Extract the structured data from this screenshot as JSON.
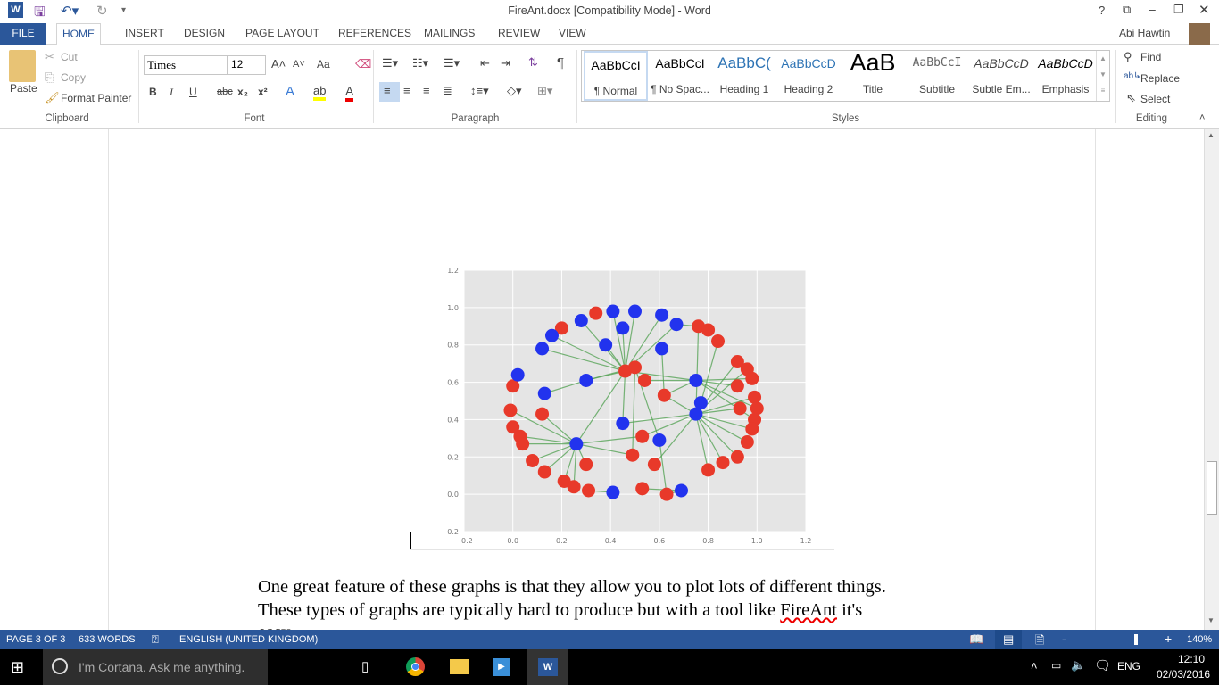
{
  "window": {
    "title": "FireAnt.docx [Compatibility Mode] - Word",
    "user": "Abi Hawtin",
    "controls": [
      "?",
      "restore-ribbon",
      "minimize",
      "maximize",
      "close"
    ]
  },
  "tabs": [
    {
      "label": "FILE"
    },
    {
      "label": "HOME",
      "active": true
    },
    {
      "label": "INSERT"
    },
    {
      "label": "DESIGN"
    },
    {
      "label": "PAGE LAYOUT"
    },
    {
      "label": "REFERENCES"
    },
    {
      "label": "MAILINGS"
    },
    {
      "label": "REVIEW"
    },
    {
      "label": "VIEW"
    }
  ],
  "ribbon": {
    "clipboard": {
      "label": "Clipboard",
      "paste": "Paste",
      "cut": "Cut",
      "copy": "Copy",
      "format_painter": "Format Painter"
    },
    "font": {
      "label": "Font",
      "font_name": "Times",
      "font_size": "12",
      "change_case": "Aa",
      "bold": "B",
      "italic": "I",
      "underline": "U",
      "strike": "abc",
      "sub": "x₂",
      "sup": "x²"
    },
    "paragraph": {
      "label": "Paragraph"
    },
    "styles": {
      "label": "Styles",
      "items": [
        {
          "preview": "AaBbCcI",
          "name": "¶ Normal",
          "selected": true
        },
        {
          "preview": "AaBbCcI",
          "name": "¶ No Spac..."
        },
        {
          "preview": "AaBbC(",
          "name": "Heading 1"
        },
        {
          "preview": "AaBbCcD",
          "name": "Heading 2"
        },
        {
          "preview": "AaB",
          "name": "Title"
        },
        {
          "preview": "AaBbCcI",
          "name": "Subtitle"
        },
        {
          "preview": "AaBbCcD",
          "name": "Subtle Em..."
        },
        {
          "preview": "AaBbCcD",
          "name": "Emphasis"
        }
      ]
    },
    "editing": {
      "label": "Editing",
      "find": "Find",
      "replace": "Replace",
      "select": "Select"
    }
  },
  "document": {
    "paragraphs": [
      "One great feature of these graphs is that they allow you to plot lots of different things.",
      "These types of graphs are typically hard to produce but with a tool like FireAnt it's",
      "easy."
    ],
    "misspelled": "FireAnt"
  },
  "chart_data": {
    "type": "scatter",
    "subtype": "network-graph",
    "xlim": [
      -0.2,
      1.2
    ],
    "ylim": [
      -0.2,
      1.2
    ],
    "xticks": [
      "−0.2",
      "0.0",
      "0.2",
      "0.4",
      "0.6",
      "0.8",
      "1.0",
      "1.2"
    ],
    "yticks": [
      "1.2",
      "1.0",
      "0.8",
      "0.6",
      "0.4",
      "0.2",
      "0.0",
      "−0.2"
    ],
    "grid": true,
    "colors": {
      "blue": "#2233ee",
      "red": "#e8392a",
      "edge": "#4e9f4e",
      "background": "#e5e5e5"
    },
    "nodes_blue": [
      [
        0.02,
        0.64
      ],
      [
        0.13,
        0.54
      ],
      [
        0.12,
        0.78
      ],
      [
        0.16,
        0.85
      ],
      [
        0.28,
        0.93
      ],
      [
        0.41,
        0.98
      ],
      [
        0.5,
        0.98
      ],
      [
        0.45,
        0.89
      ],
      [
        0.38,
        0.8
      ],
      [
        0.3,
        0.61
      ],
      [
        0.26,
        0.27
      ],
      [
        0.45,
        0.38
      ],
      [
        0.61,
        0.96
      ],
      [
        0.67,
        0.91
      ],
      [
        0.61,
        0.78
      ],
      [
        0.75,
        0.61
      ],
      [
        0.77,
        0.49
      ],
      [
        0.75,
        0.43
      ],
      [
        0.6,
        0.29
      ],
      [
        0.41,
        0.01
      ],
      [
        0.69,
        0.02
      ]
    ],
    "nodes_red": [
      [
        0.0,
        0.58
      ],
      [
        -0.01,
        0.45
      ],
      [
        0.0,
        0.36
      ],
      [
        0.03,
        0.31
      ],
      [
        0.04,
        0.27
      ],
      [
        0.12,
        0.43
      ],
      [
        0.08,
        0.18
      ],
      [
        0.13,
        0.12
      ],
      [
        0.21,
        0.07
      ],
      [
        0.25,
        0.04
      ],
      [
        0.31,
        0.02
      ],
      [
        0.2,
        0.89
      ],
      [
        0.34,
        0.97
      ],
      [
        0.46,
        0.66
      ],
      [
        0.5,
        0.68
      ],
      [
        0.54,
        0.61
      ],
      [
        0.62,
        0.53
      ],
      [
        0.53,
        0.31
      ],
      [
        0.3,
        0.16
      ],
      [
        0.49,
        0.21
      ],
      [
        0.58,
        0.16
      ],
      [
        0.53,
        0.03
      ],
      [
        0.63,
        0.0
      ],
      [
        0.76,
        0.9
      ],
      [
        0.8,
        0.88
      ],
      [
        0.84,
        0.82
      ],
      [
        0.92,
        0.71
      ],
      [
        0.96,
        0.67
      ],
      [
        0.98,
        0.62
      ],
      [
        0.92,
        0.58
      ],
      [
        0.99,
        0.52
      ],
      [
        1.0,
        0.46
      ],
      [
        0.93,
        0.46
      ],
      [
        0.99,
        0.4
      ],
      [
        0.98,
        0.35
      ],
      [
        0.96,
        0.28
      ],
      [
        0.92,
        0.2
      ],
      [
        0.86,
        0.17
      ],
      [
        0.8,
        0.13
      ]
    ],
    "edges": [
      [
        "b10",
        "r1"
      ],
      [
        "b10",
        "r3"
      ],
      [
        "b10",
        "r4"
      ],
      [
        "b10",
        "r5"
      ],
      [
        "b10",
        "r6"
      ],
      [
        "b10",
        "r7"
      ],
      [
        "b10",
        "r8"
      ],
      [
        "b10",
        "r9"
      ],
      [
        "b10",
        "r18"
      ],
      [
        "b10",
        "r19"
      ],
      [
        "b10",
        "r17"
      ],
      [
        "b10",
        "r13"
      ],
      [
        "r13",
        "b9"
      ],
      [
        "r13",
        "b3"
      ],
      [
        "r13",
        "b2"
      ],
      [
        "r13",
        "b8"
      ],
      [
        "r13",
        "b7"
      ],
      [
        "r13",
        "b5"
      ],
      [
        "r13",
        "b6"
      ],
      [
        "r13",
        "b4"
      ],
      [
        "r13",
        "b12"
      ],
      [
        "r13",
        "b13"
      ],
      [
        "r13",
        "b11"
      ],
      [
        "r13",
        "r14"
      ],
      [
        "r13",
        "b15"
      ],
      [
        "b9",
        "b1"
      ],
      [
        "b9",
        "r14"
      ],
      [
        "b15",
        "r15"
      ],
      [
        "b15",
        "r29"
      ],
      [
        "b15",
        "r31"
      ],
      [
        "b15",
        "r33"
      ],
      [
        "b15",
        "r16"
      ],
      [
        "b15",
        "r28"
      ],
      [
        "b17",
        "r16"
      ],
      [
        "b17",
        "r26"
      ],
      [
        "b17",
        "r27"
      ],
      [
        "b17",
        "r30"
      ],
      [
        "b17",
        "r32"
      ],
      [
        "b17",
        "r34"
      ],
      [
        "b17",
        "r35"
      ],
      [
        "b17",
        "r36"
      ],
      [
        "b17",
        "r37"
      ],
      [
        "b17",
        "r38"
      ],
      [
        "b17",
        "b11"
      ],
      [
        "b17",
        "r17"
      ],
      [
        "b17",
        "r20"
      ],
      [
        "b14",
        "r16"
      ],
      [
        "b13",
        "r23"
      ],
      [
        "r23",
        "r24"
      ],
      [
        "r23",
        "b17"
      ],
      [
        "b18",
        "r14"
      ],
      [
        "b18",
        "r22"
      ],
      [
        "r22",
        "b20"
      ],
      [
        "r21",
        "b20"
      ],
      [
        "b19",
        "r10"
      ],
      [
        "r19",
        "r14"
      ],
      [
        "b16",
        "r25"
      ]
    ]
  },
  "status": {
    "page": "PAGE 3 OF 3",
    "words": "633 WORDS",
    "language": "ENGLISH (UNITED KINGDOM)",
    "zoom": "140%",
    "zoom_level": 1.4
  },
  "taskbar": {
    "search_placeholder": "I'm Cortana. Ask me anything.",
    "language": "ENG",
    "time": "12:10",
    "date": "02/03/2016"
  }
}
